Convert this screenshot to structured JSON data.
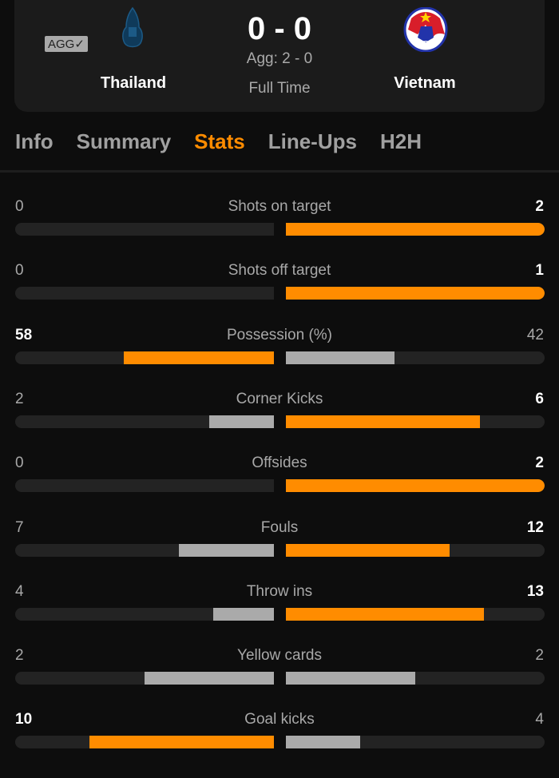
{
  "match": {
    "agg_badge": "AGG✓",
    "score": "0 - 0",
    "aggregate": "Agg: 2 - 0",
    "status": "Full Time",
    "home": {
      "name": "Thailand",
      "logo": "thailand-fa-crest"
    },
    "away": {
      "name": "Vietnam",
      "logo": "vff-crest"
    }
  },
  "tabs": [
    {
      "label": "Info"
    },
    {
      "label": "Summary"
    },
    {
      "label": "Stats",
      "active": true
    },
    {
      "label": "Line-Ups"
    },
    {
      "label": "H2H"
    }
  ],
  "colors": {
    "winner": "#ff8c00",
    "loser": "#aaaaaa",
    "track": "#232323"
  },
  "stats": [
    {
      "label": "Shots on target",
      "home": "0",
      "away": "2"
    },
    {
      "label": "Shots off target",
      "home": "0",
      "away": "1"
    },
    {
      "label": "Possession (%)",
      "home": "58",
      "away": "42"
    },
    {
      "label": "Corner Kicks",
      "home": "2",
      "away": "6"
    },
    {
      "label": "Offsides",
      "home": "0",
      "away": "2"
    },
    {
      "label": "Fouls",
      "home": "7",
      "away": "12"
    },
    {
      "label": "Throw ins",
      "home": "4",
      "away": "13"
    },
    {
      "label": "Yellow cards",
      "home": "2",
      "away": "2"
    },
    {
      "label": "Goal kicks",
      "home": "10",
      "away": "4"
    }
  ]
}
